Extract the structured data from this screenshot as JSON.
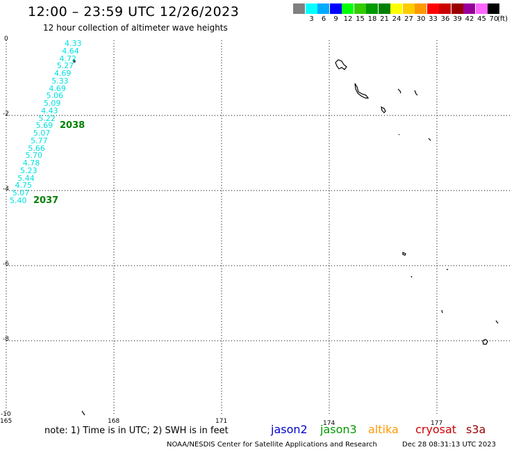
{
  "title": "12:00 – 23:59 UTC 12/26/2023",
  "subtitle": "12 hour collection of altimeter wave heights",
  "colorbar": {
    "unit": "(ft)",
    "entries": [
      {
        "color": "#808080",
        "label": ""
      },
      {
        "color": "#00ffff",
        "label": "3"
      },
      {
        "color": "#00aaff",
        "label": "6"
      },
      {
        "color": "#0000ff",
        "label": "9"
      },
      {
        "color": "#00ff00",
        "label": "12"
      },
      {
        "color": "#33cc00",
        "label": "15"
      },
      {
        "color": "#009900",
        "label": "18"
      },
      {
        "color": "#008000",
        "label": "21"
      },
      {
        "color": "#ffff00",
        "label": "24"
      },
      {
        "color": "#ffcc00",
        "label": "27"
      },
      {
        "color": "#ff9900",
        "label": "30"
      },
      {
        "color": "#ff0000",
        "label": "33"
      },
      {
        "color": "#cc0000",
        "label": "36"
      },
      {
        "color": "#990000",
        "label": "39"
      },
      {
        "color": "#990099",
        "label": "42"
      },
      {
        "color": "#ff66ff",
        "label": "45"
      },
      {
        "color": "#000000",
        "label": "70"
      }
    ]
  },
  "map": {
    "lat_labels": [
      "0",
      "-2",
      "-4",
      "-6",
      "-8",
      "-10"
    ],
    "lon_labels": [
      "165",
      "168",
      "171",
      "174",
      "177"
    ],
    "swh_color": "#00e0e0",
    "swh_values": [
      "4.33",
      "4.64",
      "4.72",
      "5.27",
      "4.69",
      "5.33",
      "4.69",
      "5.06",
      "5.09",
      "4.43",
      "5.22",
      "5.69",
      "5.07",
      "5.77",
      "5.66",
      "5.70",
      "4.78",
      "5.23",
      "5.44",
      "4.75",
      "5.07",
      "5.40"
    ],
    "pass_labels": [
      "2038",
      "2037"
    ],
    "pass_color": "#008000"
  },
  "note": "note:  1) Time is in UTC;  2) SWH is in feet",
  "satellites": [
    {
      "name": "jason2",
      "color": "#0000cc"
    },
    {
      "name": "jason3",
      "color": "#009900"
    },
    {
      "name": "altika",
      "color": "#ff9900"
    },
    {
      "name": "cryosat",
      "color": "#cc0000"
    },
    {
      "name": "s3a",
      "color": "#990000"
    }
  ],
  "footer": {
    "credit": "NOAA/NESDIS Center for Satellite Applications and Research",
    "generated": "Dec 28 08:31:13 UTC 2023"
  }
}
